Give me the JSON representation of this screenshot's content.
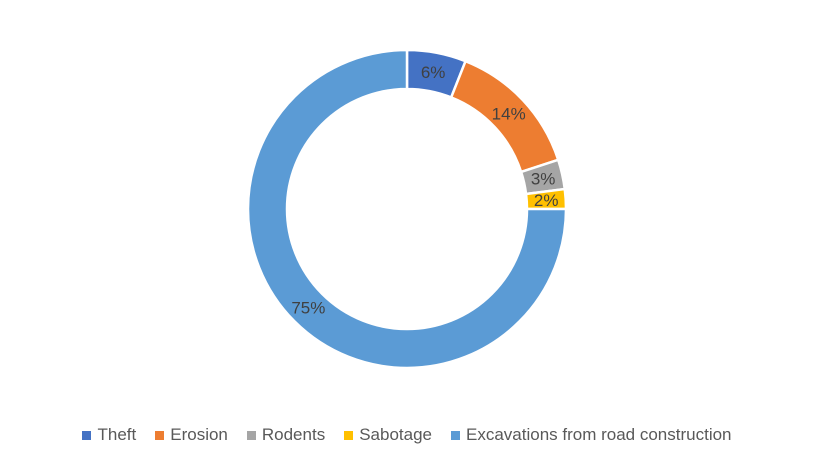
{
  "chart_data": {
    "type": "pie",
    "variant": "donut",
    "title": "",
    "categories": [
      "Theft",
      "Erosion",
      "Rodents",
      "Sabotage",
      "Excavations from road construction"
    ],
    "values": [
      6,
      14,
      3,
      2,
      75
    ],
    "data_labels": [
      "6%",
      "14%",
      "3%",
      "2%",
      "75%"
    ],
    "colors": [
      "#4472C4",
      "#ED7D31",
      "#A5A5A5",
      "#FFC000",
      "#5B9BD5"
    ],
    "legend_position": "bottom"
  }
}
